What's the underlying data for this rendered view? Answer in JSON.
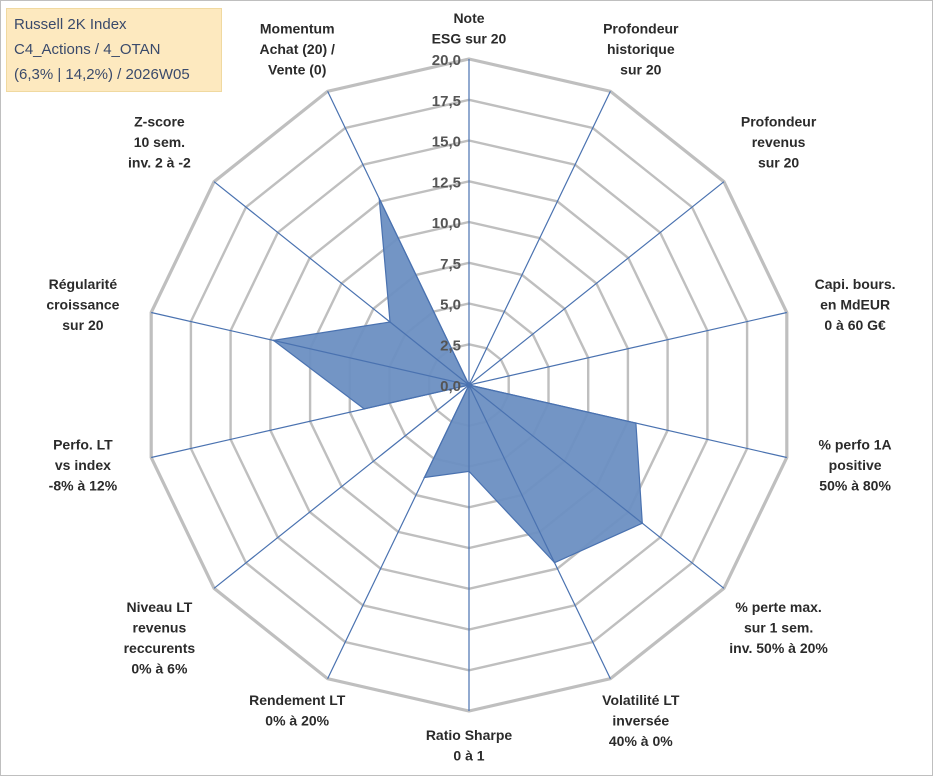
{
  "title_box": {
    "line1": "Russell 2K Index",
    "line2": "C4_Actions / 4_OTAN",
    "line3": "(6,3% | 14,2%) / 2026W05"
  },
  "chart_data": {
    "type": "radar",
    "grid": true,
    "rlim": [
      0,
      20
    ],
    "ticks": [
      "0,0",
      "2,5",
      "5,0",
      "7,5",
      "10,0",
      "12,5",
      "15,0",
      "17,5",
      "20,0"
    ],
    "axes": [
      [
        "Note",
        "ESG sur 20"
      ],
      [
        "Profondeur",
        "historique",
        "sur 20"
      ],
      [
        "Profondeur",
        "revenus",
        "sur 20"
      ],
      [
        "Capi. bours.",
        "en MdEUR",
        "0 à 60 G€"
      ],
      [
        "% perfo 1A",
        "positive",
        "50% à 80%"
      ],
      [
        "% perte max.",
        "sur 1 sem.",
        "inv. 50% à 20%"
      ],
      [
        "Volatilité LT",
        "inversée",
        "40% à 0%"
      ],
      [
        "Ratio Sharpe",
        "0 à 1"
      ],
      [
        "Rendement LT",
        "0% à 20%"
      ],
      [
        "Niveau LT",
        "revenus",
        "reccurents",
        "0% à 6%"
      ],
      [
        "Perfo. LT",
        "vs index",
        "-8% à 12%"
      ],
      [
        "Régularité",
        "croissance",
        "sur 20"
      ],
      [
        "Z-score",
        "10 sem.",
        "inv. 2 à -2"
      ],
      [
        "Momentum",
        "Achat (20) /",
        "Vente (0)"
      ]
    ],
    "series": [
      {
        "values": [
          0,
          0,
          0,
          0,
          10.5,
          13.6,
          12.1,
          5.3,
          6.3,
          0,
          6.6,
          12.3,
          6.2,
          12.7
        ]
      }
    ],
    "colors": {
      "fill": "#6b8fc2",
      "stroke": "#4a72b0",
      "grid": "#bfbfbf",
      "spoke": "#4a72b0"
    }
  }
}
